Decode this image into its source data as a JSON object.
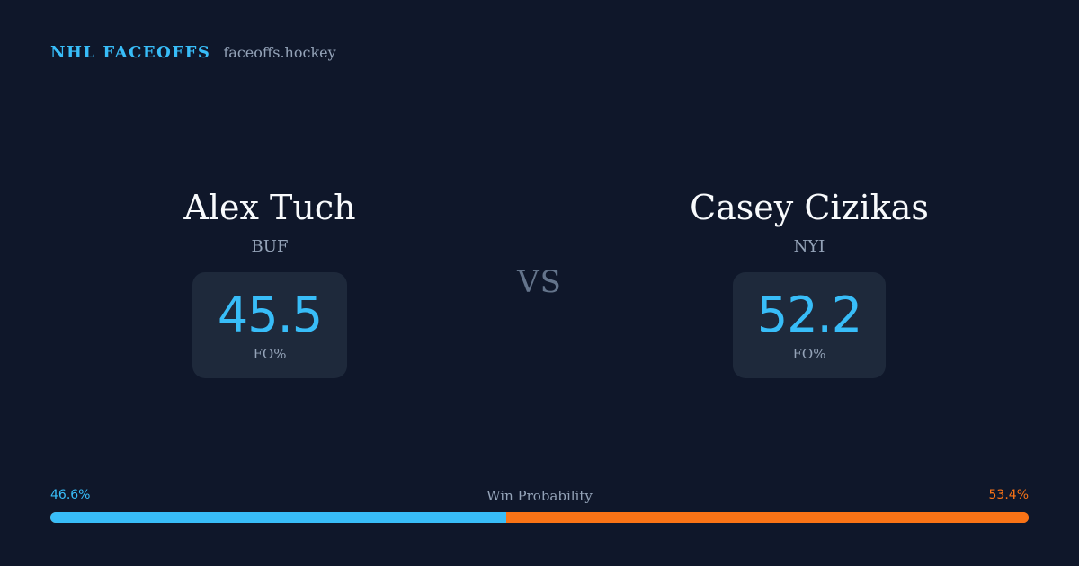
{
  "brand": {
    "name": "NHL FACEOFFS",
    "site": "faceoffs.hockey"
  },
  "players": [
    {
      "name": "Alex Tuch",
      "team": "BUF",
      "stat_value": "45.5",
      "stat_label": "FO%"
    },
    {
      "name": "Casey Cizikas",
      "team": "NYI",
      "stat_value": "52.2",
      "stat_label": "FO%"
    }
  ],
  "vs_label": "VS",
  "win_probability": {
    "title": "Win Probability",
    "left_label": "46.6%",
    "right_label": "53.4%",
    "left_fraction": 0.466,
    "right_fraction": 0.534
  },
  "colors": {
    "background": "#0f172a",
    "card": "#1e293b",
    "accent_left": "#38bdf8",
    "accent_right": "#f97316",
    "muted": "#94a3b8"
  }
}
